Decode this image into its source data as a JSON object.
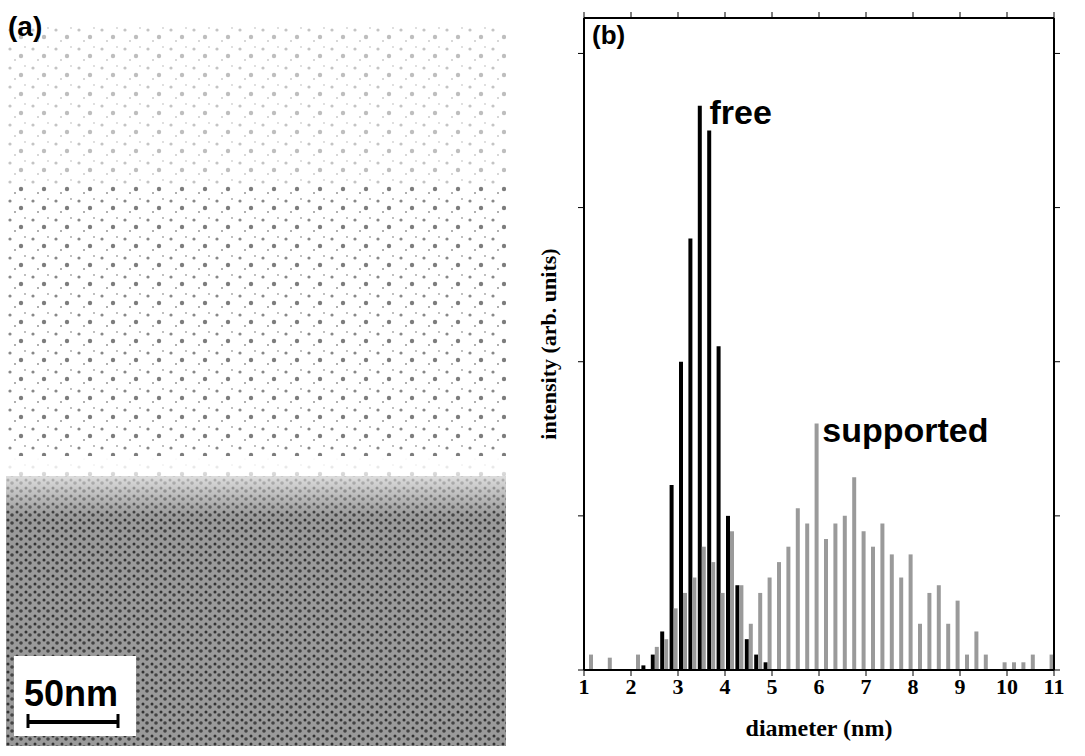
{
  "panel_a": {
    "label": "(a)",
    "scale_bar": "50nm"
  },
  "chart_data": {
    "type": "bar",
    "panel_label": "(b)",
    "x_label": "diameter (nm)",
    "y_label": "intensity (arb. units)",
    "x": [
      1.1,
      1.3,
      1.5,
      1.7,
      1.9,
      2.1,
      2.3,
      2.5,
      2.7,
      2.9,
      3.1,
      3.3,
      3.5,
      3.7,
      3.9,
      4.1,
      4.3,
      4.5,
      4.7,
      4.9,
      5.1,
      5.3,
      5.5,
      5.7,
      5.9,
      6.1,
      6.3,
      6.5,
      6.7,
      6.9,
      7.1,
      7.3,
      7.5,
      7.7,
      7.9,
      8.1,
      8.3,
      8.5,
      8.7,
      8.9,
      9.1,
      9.3,
      9.5,
      9.7,
      9.9,
      10.1,
      10.3,
      10.5,
      10.7,
      10.9
    ],
    "series": [
      {
        "name": "free",
        "color": "#000000",
        "values": [
          null,
          null,
          null,
          null,
          null,
          null,
          0.03,
          0.1,
          0.25,
          1.2,
          2.0,
          2.8,
          3.66,
          3.5,
          2.1,
          1.0,
          0.55,
          0.2,
          0.1,
          0.05,
          null,
          null,
          null,
          null,
          null,
          null,
          null,
          null,
          null,
          null,
          null,
          null,
          null,
          null,
          null,
          null,
          null,
          null,
          null,
          null,
          null,
          null,
          null,
          null,
          null,
          null,
          null,
          null,
          null,
          null
        ]
      },
      {
        "name": "supported",
        "color": "#9a9a9a",
        "values": [
          0.1,
          null,
          0.08,
          null,
          null,
          0.1,
          null,
          0.15,
          0.2,
          0.4,
          0.5,
          0.6,
          0.8,
          0.7,
          0.5,
          0.9,
          0.55,
          0.3,
          0.5,
          0.6,
          0.7,
          0.8,
          1.05,
          0.95,
          1.6,
          0.85,
          0.95,
          1.0,
          1.25,
          0.9,
          0.8,
          0.95,
          0.75,
          0.6,
          0.75,
          0.3,
          0.5,
          0.55,
          0.3,
          0.45,
          0.1,
          0.25,
          0.1,
          null,
          0.05,
          0.05,
          0.05,
          0.1,
          null,
          0.1
        ]
      }
    ],
    "xlim": [
      1,
      11
    ],
    "xticks": [
      1,
      2,
      3,
      4,
      5,
      6,
      7,
      8,
      9,
      10,
      11
    ],
    "ylim": [
      0,
      4.23
    ],
    "yticks": [
      0,
      1,
      2,
      3,
      4
    ],
    "tick_labels": "x"
  }
}
